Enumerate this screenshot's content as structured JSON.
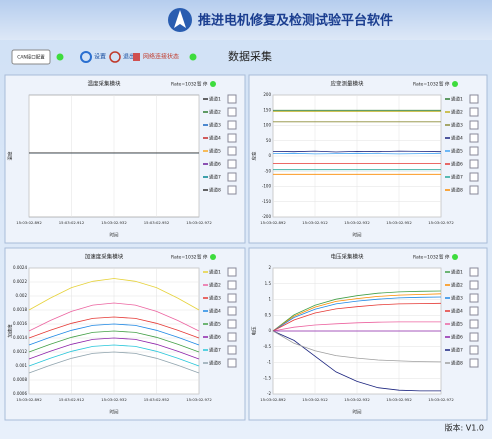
{
  "header": {
    "title": "推进电机修复及检测试验平台软件"
  },
  "toolbar": {
    "can_button": "CAN接口配置",
    "settings": "设置",
    "exit": "退出",
    "network": "网络连接状态",
    "section": "数据采集"
  },
  "footer": {
    "version": "版本: V1.0"
  },
  "panels": [
    {
      "title": "温度采集模块",
      "rate": "Rate=1032",
      "pause": "暂 停",
      "ylabel": "温度",
      "xlabel": "时间",
      "ylim": [
        -1,
        1
      ],
      "xticks": [
        "15:03:02.892",
        "15:03:02.912",
        "15:03:02.932",
        "15:03:02.952",
        "15:03:02.972"
      ],
      "series": [
        {
          "name": "通道1",
          "color": "#333333",
          "values": [
            0.05,
            0.05,
            0.05,
            0.05,
            0.05,
            0.05,
            0.05,
            0.05,
            0.05
          ]
        },
        {
          "name": "通道2",
          "color": "#2e7d32",
          "values": [
            0.05,
            0.05,
            0.05,
            0.05,
            0.05,
            0.05,
            0.05,
            0.05,
            0.05
          ]
        },
        {
          "name": "通道3",
          "color": "#1565c0",
          "values": [
            0.05,
            0.05,
            0.05,
            0.05,
            0.05,
            0.05,
            0.05,
            0.05,
            0.05
          ]
        },
        {
          "name": "通道4",
          "color": "#c62828",
          "values": [
            0.05,
            0.05,
            0.05,
            0.05,
            0.05,
            0.05,
            0.05,
            0.05,
            0.05
          ]
        },
        {
          "name": "通道5",
          "color": "#f9a825",
          "values": [
            0.05,
            0.05,
            0.05,
            0.05,
            0.05,
            0.05,
            0.05,
            0.05,
            0.05
          ]
        },
        {
          "name": "通道6",
          "color": "#6a1b9a",
          "values": [
            0.05,
            0.05,
            0.05,
            0.05,
            0.05,
            0.05,
            0.05,
            0.05,
            0.05
          ]
        },
        {
          "name": "通道7",
          "color": "#00838f",
          "values": [
            0.05,
            0.05,
            0.05,
            0.05,
            0.05,
            0.05,
            0.05,
            0.05,
            0.05
          ]
        },
        {
          "name": "通道8",
          "color": "#333333",
          "values": [
            0.05,
            0.05,
            0.05,
            0.05,
            0.05,
            0.05,
            0.05,
            0.05,
            0.05
          ]
        }
      ]
    },
    {
      "title": "应变测量模块",
      "rate": "Rate=1032",
      "pause": "暂 停",
      "ylabel": "应变",
      "xlabel": "时间",
      "ylim": [
        -200,
        200
      ],
      "yticks": [
        200,
        150,
        100,
        50,
        0,
        -50,
        -100,
        -150,
        -200
      ],
      "xticks": [
        "15:03:02.892",
        "15:03:02.912",
        "15:03:02.932",
        "15:03:02.952",
        "15:03:02.972"
      ],
      "series": [
        {
          "name": "通道1",
          "color": "#2e7d32",
          "values": [
            150,
            150,
            150,
            150,
            150,
            150,
            150,
            150,
            150
          ]
        },
        {
          "name": "通道2",
          "color": "#c0b020",
          "values": [
            146,
            146,
            146,
            146,
            146,
            146,
            146,
            146,
            146
          ]
        },
        {
          "name": "通道3",
          "color": "#8d8d3a",
          "values": [
            112,
            112,
            112,
            112,
            112,
            112,
            112,
            112,
            112
          ]
        },
        {
          "name": "通道4",
          "color": "#1a237e",
          "values": [
            15,
            14,
            16,
            13,
            15,
            14,
            16,
            15,
            14
          ]
        },
        {
          "name": "通道5",
          "color": "#42a5f5",
          "values": [
            8,
            9,
            7,
            8,
            9,
            8,
            7,
            8,
            9
          ]
        },
        {
          "name": "通道6",
          "color": "#e53935",
          "values": [
            -25,
            -25,
            -25,
            -25,
            -25,
            -25,
            -25,
            -25,
            -25
          ]
        },
        {
          "name": "通道7",
          "color": "#26a69a",
          "values": [
            -45,
            -45,
            -45,
            -45,
            -45,
            -45,
            -45,
            -45,
            -45
          ]
        },
        {
          "name": "通道8",
          "color": "#fb8c00",
          "values": [
            -60,
            -60,
            -60,
            -60,
            -60,
            -60,
            -60,
            -60,
            -60
          ]
        }
      ]
    },
    {
      "title": "加速度采集模块",
      "rate": "Rate=1032",
      "pause": "暂 停",
      "ylabel": "加速度",
      "xlabel": "时间",
      "ylim": [
        0.0006,
        0.0024
      ],
      "yticks": [
        0.0024,
        0.0022,
        0.002,
        0.0018,
        0.0016,
        0.0014,
        0.0012,
        0.001,
        0.0008,
        0.0006
      ],
      "xticks": [
        "15:03:02.892",
        "15:03:02.912",
        "15:03:02.932",
        "15:03:02.952",
        "15:03:02.972"
      ],
      "series": [
        {
          "name": "通道1",
          "color": "#e6d23a",
          "values": [
            0.0018,
            0.00197,
            0.00212,
            0.00221,
            0.00225,
            0.00221,
            0.00212,
            0.00197,
            0.0018
          ]
        },
        {
          "name": "通道2",
          "color": "#ec64a0",
          "values": [
            0.0015,
            0.00165,
            0.00178,
            0.00187,
            0.0019,
            0.00187,
            0.00178,
            0.00165,
            0.0015
          ]
        },
        {
          "name": "通道3",
          "color": "#e53935",
          "values": [
            0.0014,
            0.00151,
            0.00161,
            0.00168,
            0.0017,
            0.00168,
            0.00161,
            0.00151,
            0.0014
          ]
        },
        {
          "name": "通道4",
          "color": "#1e88e5",
          "values": [
            0.0013,
            0.00141,
            0.00151,
            0.00158,
            0.0016,
            0.00158,
            0.00151,
            0.00141,
            0.0013
          ]
        },
        {
          "name": "通道5",
          "color": "#43a047",
          "values": [
            0.0012,
            0.00131,
            0.00141,
            0.00148,
            0.0015,
            0.00148,
            0.00141,
            0.00131,
            0.0012
          ]
        },
        {
          "name": "通道6",
          "color": "#8e24aa",
          "values": [
            0.0011,
            0.00121,
            0.00131,
            0.00138,
            0.0014,
            0.00138,
            0.00131,
            0.00121,
            0.0011
          ]
        },
        {
          "name": "通道7",
          "color": "#26c6da",
          "values": [
            0.001,
            0.00111,
            0.00121,
            0.00128,
            0.0013,
            0.00128,
            0.00121,
            0.00111,
            0.001
          ]
        },
        {
          "name": "通道8",
          "color": "#90a4ae",
          "values": [
            0.0009,
            0.00101,
            0.00111,
            0.00118,
            0.0012,
            0.00118,
            0.00111,
            0.00101,
            0.0009
          ]
        }
      ]
    },
    {
      "title": "电压采集模块",
      "rate": "Rate=1032",
      "pause": "暂 停",
      "ylabel": "电压",
      "xlabel": "时间",
      "ylim": [
        -2,
        2
      ],
      "yticks": [
        2,
        1.5,
        1,
        0.5,
        0,
        -0.5,
        -1,
        -1.5,
        -2
      ],
      "xticks": [
        "15:03:02.892",
        "15:03:02.912",
        "15:03:02.932",
        "15:03:02.952",
        "15:03:02.972"
      ],
      "series": [
        {
          "name": "通道1",
          "color": "#43a047",
          "values": [
            0,
            0.51,
            0.82,
            1.01,
            1.12,
            1.2,
            1.24,
            1.26,
            1.27
          ]
        },
        {
          "name": "通道2",
          "color": "#fb8c00",
          "values": [
            0,
            0.47,
            0.76,
            0.94,
            1.03,
            1.1,
            1.14,
            1.16,
            1.18
          ]
        },
        {
          "name": "通道3",
          "color": "#1e88e5",
          "values": [
            0,
            0.43,
            0.69,
            0.86,
            0.95,
            1.01,
            1.05,
            1.07,
            1.08
          ]
        },
        {
          "name": "通道4",
          "color": "#e53935",
          "values": [
            0,
            0.35,
            0.57,
            0.7,
            0.77,
            0.83,
            0.86,
            0.87,
            0.88
          ]
        },
        {
          "name": "通道5",
          "color": "#ec64a0",
          "values": [
            0,
            0.12,
            0.19,
            0.23,
            0.26,
            0.28,
            0.29,
            0.29,
            0.29
          ]
        },
        {
          "name": "通道6",
          "color": "#8e24aa",
          "values": [
            0,
            0,
            0,
            0,
            0,
            0,
            0,
            0,
            0
          ]
        },
        {
          "name": "通道7",
          "color": "#1a237e",
          "values": [
            0,
            -0.3,
            -0.8,
            -1.3,
            -1.6,
            -1.8,
            -1.88,
            -1.9,
            -1.9
          ]
        },
        {
          "name": "通道8",
          "color": "#9e9e9e",
          "values": [
            0,
            -0.39,
            -0.63,
            -0.78,
            -0.86,
            -0.92,
            -0.95,
            -0.97,
            -0.98
          ]
        }
      ]
    }
  ]
}
